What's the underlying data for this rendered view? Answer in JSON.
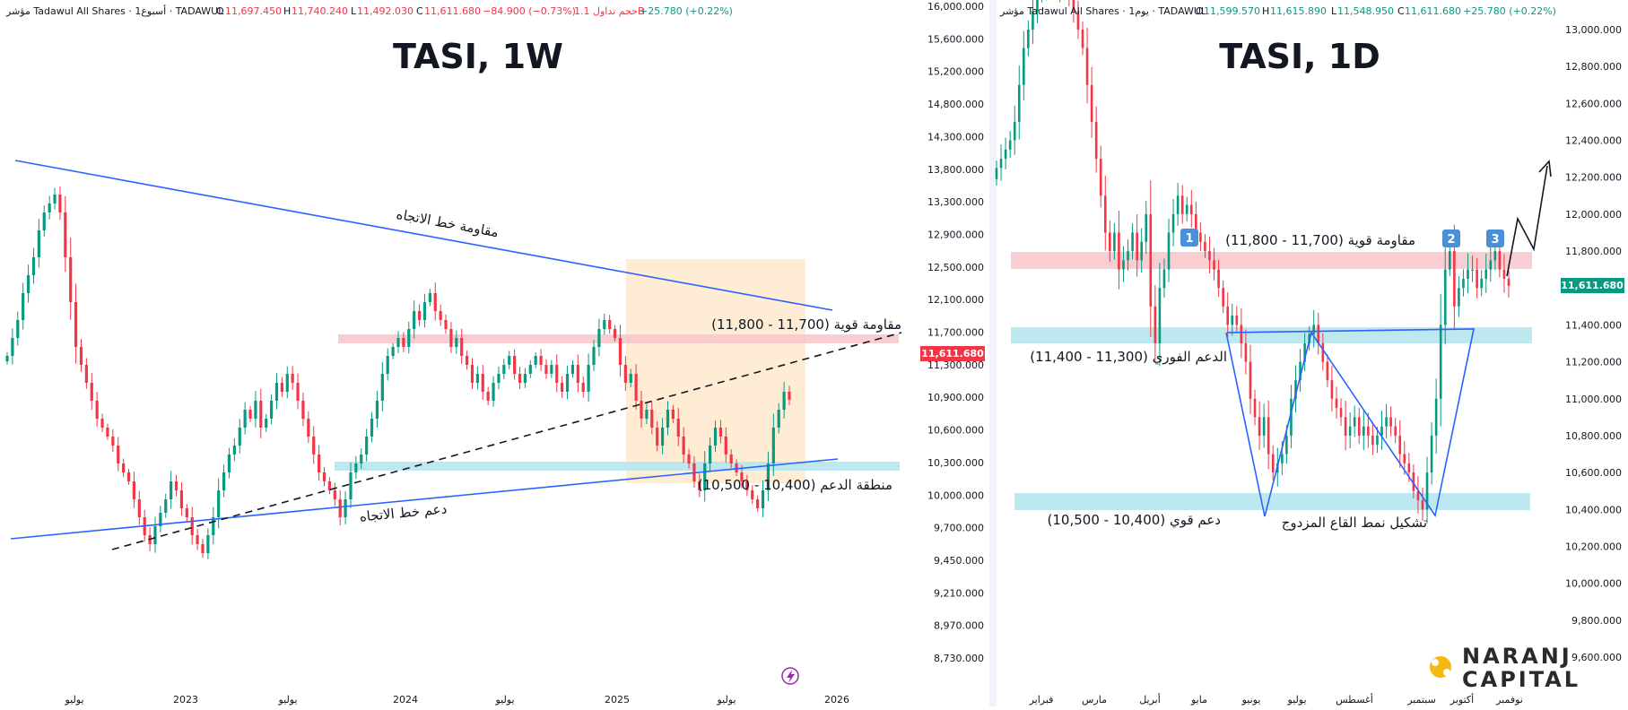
{
  "brand": {
    "line1": "NARANJ",
    "line2": "CAPITAL",
    "accent": "#f5b915"
  },
  "colors": {
    "up": "#089981",
    "down": "#f23645",
    "trend": "#2962ff",
    "resistance_zone": "#f7c6cb",
    "support_zone": "#b6e6ee",
    "highlight_box": "#fde7c6"
  },
  "weekly": {
    "title": "TASI, 1W",
    "header": {
      "symbol": "مؤشر Tadawul All Shares · 1أسبوع · TADAWUL",
      "o_label": "O",
      "o": "11,697.450",
      "h_label": "H",
      "h": "11,740.240",
      "l_label": "L",
      "l": "11,492.030",
      "c_label": "C",
      "c": "11,611.680",
      "change": "−84.900 (−0.73%)",
      "volume": "حجم تداول 1.1B",
      "volume_change": "+25.780 (+0.22%)"
    },
    "price_axis": [
      "16,000.000",
      "15,600.000",
      "15,200.000",
      "14,800.000",
      "14,300.000",
      "13,800.000",
      "13,300.000",
      "12,900.000",
      "12,500.000",
      "12,100.000",
      "11,700.000",
      "11,300.000",
      "10,900.000",
      "10,600.000",
      "10,300.000",
      "10,000.000",
      "9,700.000",
      "9,450.000",
      "9,210.000",
      "8,970.000",
      "8,730.000"
    ],
    "last_price": "11,611.680",
    "time_axis": [
      "يوليو",
      "2023",
      "يوليو",
      "2024",
      "يوليو",
      "2025",
      "يوليو",
      "2026"
    ],
    "annotations": {
      "trend_resistance": "مقاومة خط الاتجاه",
      "trend_support": "دعم خط الاتجاه",
      "strong_resistance": "مقاومة قوية (11,700 - 11,800)",
      "support_zone": "منطقة الدعم (10,400 - 10,500)"
    }
  },
  "daily": {
    "title": "TASI, 1D",
    "header": {
      "symbol": "مؤشر Tadawul All Shares · 1يوم · TADAWUL",
      "o_label": "O",
      "o": "11,599.570",
      "h_label": "H",
      "h": "11,615.890",
      "l_label": "L",
      "l": "11,548.950",
      "c_label": "C",
      "c": "11,611.680",
      "change": "+25.780 (+0.22%)"
    },
    "price_axis": [
      "13,000.000",
      "12,800.000",
      "12,600.000",
      "12,400.000",
      "12,200.000",
      "12,000.000",
      "11,800.000",
      "11,600.000",
      "11,400.000",
      "11,200.000",
      "11,000.000",
      "10,800.000",
      "10,600.000",
      "10,400.000",
      "10,200.000",
      "10,000.000",
      "9,800.000",
      "9,600.000"
    ],
    "last_price": "11,611.680",
    "time_axis": [
      "فبراير",
      "مارس",
      "أبريل",
      "مايو",
      "يونيو",
      "يوليو",
      "أغسطس",
      "سبتمبر",
      "أكتوبر",
      "نوفمبر"
    ],
    "annotations": {
      "strong_resistance": "مقاومة قوية (11,700 - 11,800)",
      "immediate_support": "الدعم الفوري (11,300 - 11,400)",
      "strong_support": "دعم قوي (10,400 - 10,500)",
      "double_bottom": "تشكيل نمط القاع المزدوج",
      "marker_1": "1",
      "marker_2": "2",
      "marker_3": "3"
    }
  },
  "chart_data": [
    {
      "type": "candlestick",
      "title": "TASI, 1W",
      "ylim": [
        8730,
        16000
      ],
      "x_ticks": [
        "يوليو",
        "2023",
        "يوليو",
        "2024",
        "يوليو",
        "2025",
        "يوليو",
        "2026"
      ],
      "close_path": [
        12100,
        12300,
        12500,
        12800,
        13000,
        13200,
        13500,
        13700,
        13800,
        13900,
        13700,
        13200,
        12700,
        12200,
        12000,
        11800,
        11600,
        11400,
        11300,
        11200,
        11100,
        10900,
        10800,
        10700,
        10500,
        10300,
        10100,
        10000,
        10200,
        10350,
        10500,
        10700,
        10600,
        10400,
        10300,
        10100,
        10000,
        9900,
        10100,
        10300,
        10600,
        10800,
        11000,
        11100,
        11300,
        11500,
        11400,
        11600,
        11300,
        11400,
        11600,
        11800,
        11700,
        11900,
        11800,
        11600,
        11400,
        11200,
        11000,
        10800,
        10700,
        10600,
        10500,
        10300,
        10500,
        10800,
        10900,
        11000,
        11200,
        11400,
        11600,
        11900,
        12100,
        12200,
        12300,
        12200,
        12400,
        12600,
        12500,
        12700,
        12800,
        12600,
        12500,
        12400,
        12200,
        12300,
        12100,
        12000,
        11800,
        11900,
        11700,
        11600,
        11800,
        11900,
        12000,
        12100,
        11900,
        11800,
        11900,
        12000,
        12100,
        12000,
        11900,
        12000,
        11800,
        11700,
        11900,
        12000,
        11800,
        11700,
        12000,
        12200,
        12400,
        12500,
        12400,
        12300,
        12000,
        11800,
        11900,
        11600,
        11400,
        11500,
        11300,
        11100,
        11300,
        11500,
        11400,
        11200,
        11000,
        10900,
        10700,
        10600,
        10900,
        11100,
        11300,
        11200,
        11000,
        10900,
        10800,
        10700,
        10600,
        10500,
        10400,
        10600,
        10900,
        11300,
        11500,
        11700,
        11612
      ],
      "series": [
        {
          "name": "مقاومة خط الاتجاه",
          "from": 13900,
          "to": 12100
        },
        {
          "name": "دعم خط الاتجاه",
          "from": 9650,
          "to": 10530
        }
      ],
      "zones": [
        {
          "label": "مقاومة قوية (11,700 - 11,800)",
          "range": [
            11700,
            11800
          ]
        },
        {
          "label": "منطقة الدعم (10,400 - 10,500)",
          "range": [
            10400,
            10500
          ]
        }
      ],
      "last": 11611.68
    },
    {
      "type": "candlestick",
      "title": "TASI, 1D",
      "ylim": [
        9600,
        13000
      ],
      "x_ticks": [
        "فبراير",
        "مارس",
        "أبريل",
        "مايو",
        "يونيو",
        "يوليو",
        "أغسطس",
        "سبتمبر",
        "أكتوبر",
        "نوفمبر"
      ],
      "close_path": [
        12250,
        12300,
        12350,
        12400,
        12500,
        12700,
        12900,
        13000,
        13100,
        13200,
        13200,
        13300,
        13350,
        13300,
        13200,
        13250,
        13200,
        13100,
        13000,
        12900,
        12700,
        12500,
        12300,
        12100,
        11900,
        11800,
        11900,
        11700,
        11750,
        11800,
        11900,
        11750,
        11850,
        12000,
        11500,
        11300,
        11600,
        11700,
        11900,
        12000,
        12100,
        12000,
        12050,
        12000,
        11900,
        11850,
        11800,
        11750,
        11700,
        11600,
        11500,
        11400,
        11450,
        11400,
        11300,
        11200,
        11000,
        10900,
        10800,
        10900,
        10700,
        10600,
        10650,
        10700,
        10800,
        11000,
        11100,
        11200,
        11300,
        11350,
        11400,
        11300,
        11200,
        11100,
        11000,
        10950,
        10900,
        10800,
        10850,
        10900,
        10800,
        10850,
        10800,
        10750,
        10800,
        10850,
        10900,
        10850,
        10800,
        10700,
        10650,
        10600,
        10500,
        10450,
        10400,
        10600,
        10800,
        11000,
        11400,
        11700,
        11800,
        11500,
        11600,
        11650,
        11700,
        11700,
        11600,
        11650,
        11700,
        11750,
        11800,
        11700,
        11650,
        11612
      ],
      "zones": [
        {
          "label": "مقاومة قوية (11,700 - 11,800)",
          "range": [
            11700,
            11800
          ]
        },
        {
          "label": "الدعم الفوري (11,300 - 11,400)",
          "range": [
            11300,
            11400
          ]
        },
        {
          "label": "دعم قوي (10,400 - 10,500)",
          "range": [
            10400,
            10500
          ]
        }
      ],
      "last": 11611.68
    }
  ]
}
